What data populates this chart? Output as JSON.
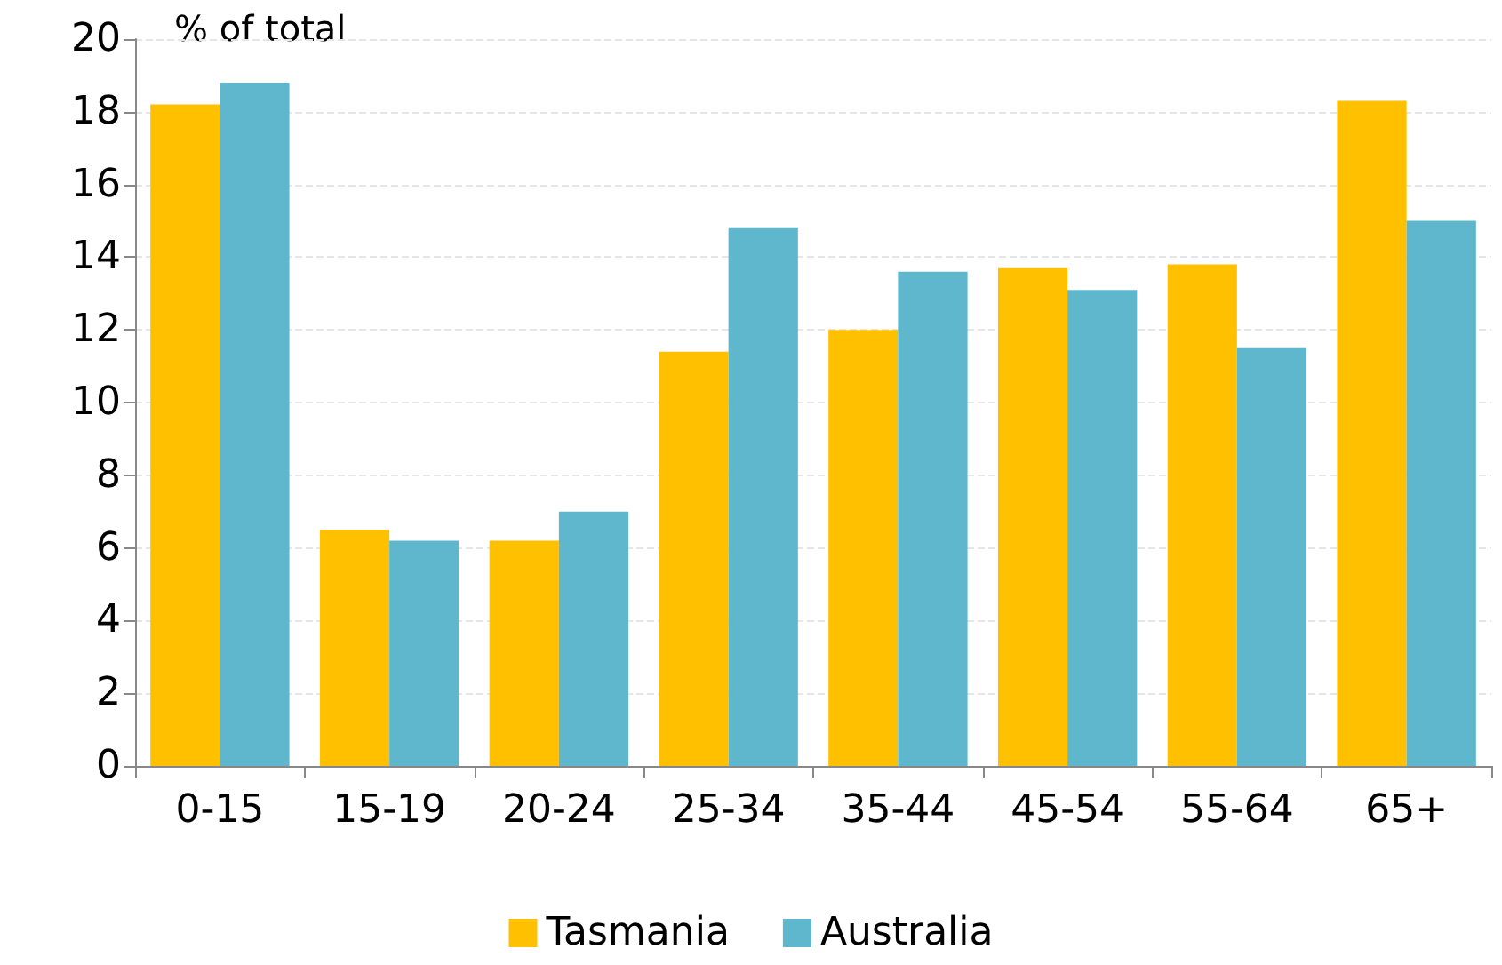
{
  "chart_data": {
    "type": "bar",
    "ylabel": "% of total",
    "categories": [
      "0-15",
      "15-19",
      "20-24",
      "25-34",
      "35-44",
      "45-54",
      "55-64",
      "65+"
    ],
    "series": [
      {
        "name": "Tasmania",
        "color": "#ffc000",
        "values": [
          18.2,
          6.5,
          6.2,
          11.4,
          12.0,
          13.7,
          13.8,
          18.3
        ]
      },
      {
        "name": "Australia",
        "color": "#5eb7cc",
        "values": [
          18.8,
          6.2,
          7.0,
          14.8,
          13.6,
          13.1,
          11.5,
          15.0
        ]
      }
    ],
    "ylim": [
      0,
      20
    ],
    "yticks": [
      0,
      2,
      4,
      6,
      8,
      10,
      12,
      14,
      16,
      18,
      20
    ],
    "grid": true,
    "legend": "bottom"
  }
}
